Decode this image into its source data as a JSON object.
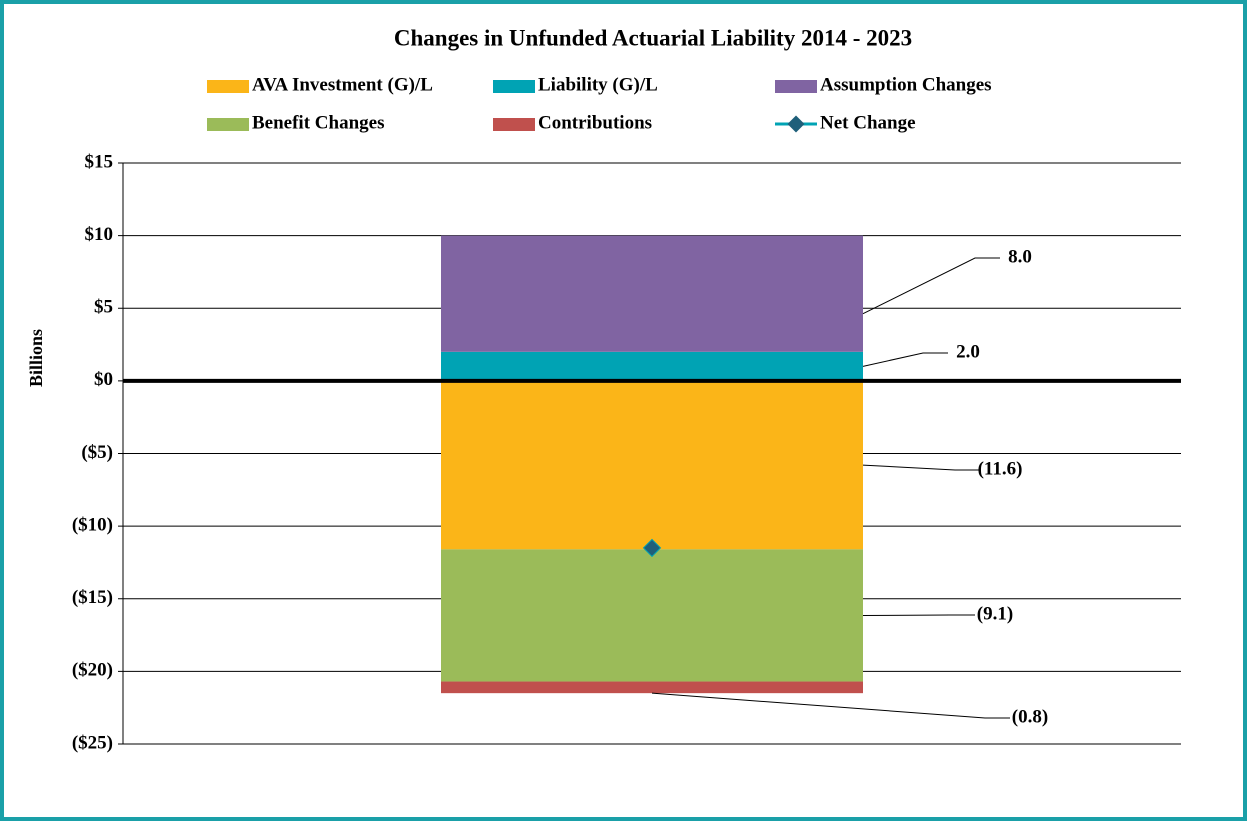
{
  "chart_data": {
    "type": "bar",
    "stacked": true,
    "title": "Changes in Unfunded Actuarial Liability 2014 - 2023",
    "y_label": "Billions",
    "categories": [
      null
    ],
    "series": [
      {
        "name": "AVA Investment (G)/L",
        "color": "#fbb518",
        "values": [
          -11.6
        ],
        "value_labels": [
          "(11.6)"
        ]
      },
      {
        "name": "Liability (G)/L",
        "color": "#00a3b4",
        "values": [
          2.0
        ],
        "value_labels": [
          "2.0"
        ]
      },
      {
        "name": "Assumption Changes",
        "color": "#8064a2",
        "values": [
          8.0
        ],
        "value_labels": [
          "8.0"
        ]
      },
      {
        "name": "Benefit Changes",
        "color": "#9bbb59",
        "values": [
          -9.1
        ],
        "value_labels": [
          "(9.1)"
        ]
      },
      {
        "name": "Contributions",
        "color": "#c0504d",
        "values": [
          -0.8
        ],
        "value_labels": [
          "(0.8)"
        ]
      },
      {
        "name": "Net Change",
        "type": "line",
        "color": "#00a3b4",
        "marker_color": "#1f5f7a",
        "values": [
          -11.5
        ]
      }
    ],
    "ylim": [
      -25,
      15
    ],
    "yticks": [
      {
        "value": -25,
        "label": "($25)"
      },
      {
        "value": -20,
        "label": "($20)"
      },
      {
        "value": -15,
        "label": "($15)"
      },
      {
        "value": -10,
        "label": "($10)"
      },
      {
        "value": -5,
        "label": "($5)"
      },
      {
        "value": 0,
        "label": "$0"
      },
      {
        "value": 5,
        "label": "$5"
      },
      {
        "value": 10,
        "label": "$10"
      },
      {
        "value": 15,
        "label": "$15"
      }
    ],
    "grid": true
  }
}
